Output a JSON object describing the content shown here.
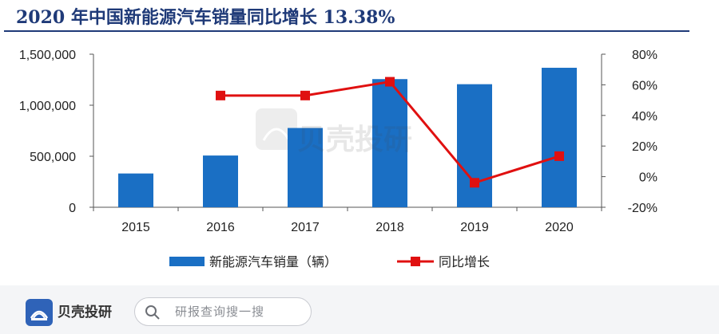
{
  "title": "2020 年中国新能源汽车销量同比增长 13.38%",
  "chart_data": {
    "type": "bar",
    "categories": [
      "2015",
      "2016",
      "2017",
      "2018",
      "2019",
      "2020"
    ],
    "series": [
      {
        "name": "新能源汽车销量（辆）",
        "type": "bar",
        "axis": "left",
        "color": "#1a6fc4",
        "values": [
          331000,
          507000,
          777000,
          1256000,
          1206000,
          1367000
        ]
      },
      {
        "name": "同比增长",
        "type": "line",
        "axis": "right",
        "color": "#e01010",
        "values": [
          null,
          53,
          53,
          62,
          -4,
          13.38
        ]
      }
    ],
    "ylim_left": [
      0,
      1500000
    ],
    "yticks_left": [
      "0",
      "500,000",
      "1,000,000",
      "1,500,000"
    ],
    "ylim_right": [
      -20,
      80
    ],
    "yticks_right": [
      "-20%",
      "0%",
      "20%",
      "40%",
      "60%",
      "80%"
    ],
    "legend_position": "bottom"
  },
  "watermark": {
    "brand": "贝壳投研"
  },
  "footer": {
    "logo_text": "贝壳投研",
    "search_placeholder": "研报查询搜一搜"
  }
}
